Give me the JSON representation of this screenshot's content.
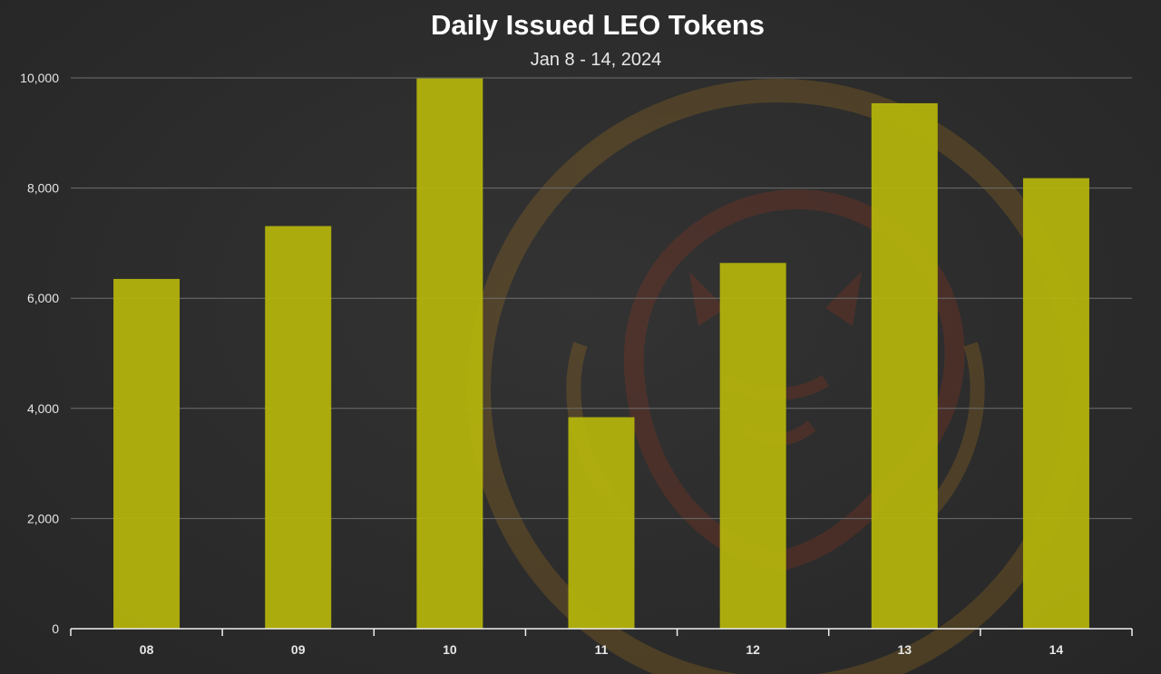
{
  "colors": {
    "background": "#2b2b2b",
    "bar": "#b5b50c",
    "watermark": "#6e2a1a"
  },
  "watermark": {
    "icon": "lion-head-logo-icon"
  },
  "chart_data": {
    "type": "bar",
    "title": "Daily Issued LEO Tokens",
    "subtitle": "Jan 8 - 14, 2024",
    "categories": [
      "08",
      "09",
      "10",
      "11",
      "12",
      "13",
      "14"
    ],
    "values": [
      6350,
      7310,
      9990,
      3840,
      6640,
      9540,
      8180
    ],
    "yticks": [
      "0",
      "2,000",
      "4,000",
      "6,000",
      "8,000",
      "10,000"
    ],
    "ytick_values": [
      0,
      2000,
      4000,
      6000,
      8000,
      10000
    ],
    "ylim": [
      0,
      10000
    ],
    "grid": true,
    "legend": "none"
  }
}
